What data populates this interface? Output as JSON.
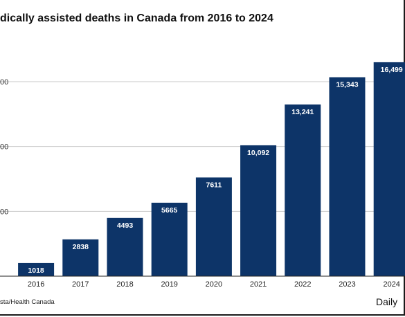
{
  "header": {
    "title": "dically assisted deaths in Canada from 2016 to 2024"
  },
  "footer": {
    "source": "sta/Health Canada",
    "brand": "Daily"
  },
  "chart_data": {
    "type": "bar",
    "title": "dically assisted deaths in Canada from 2016 to 2024",
    "xlabel": "",
    "ylabel": "",
    "categories": [
      "2016",
      "2017",
      "2018",
      "2019",
      "2020",
      "2021",
      "2022",
      "2023",
      "2024"
    ],
    "values": [
      1018,
      2838,
      4493,
      5665,
      7611,
      10092,
      13241,
      15343,
      16499
    ],
    "value_labels": [
      "1018",
      "2838",
      "4493",
      "5665",
      "7611",
      "10,092",
      "13,241",
      "15,343",
      "16,499"
    ],
    "ylim": [
      0,
      17000
    ],
    "yticks": [
      5000,
      10000,
      15000
    ],
    "ytick_labels": [
      "00",
      "00",
      "00"
    ],
    "grid": true,
    "colors": {
      "bar": "#0d3468",
      "label": "#ffffff",
      "grid": "#c8c8c8",
      "axis": "#222222"
    }
  }
}
